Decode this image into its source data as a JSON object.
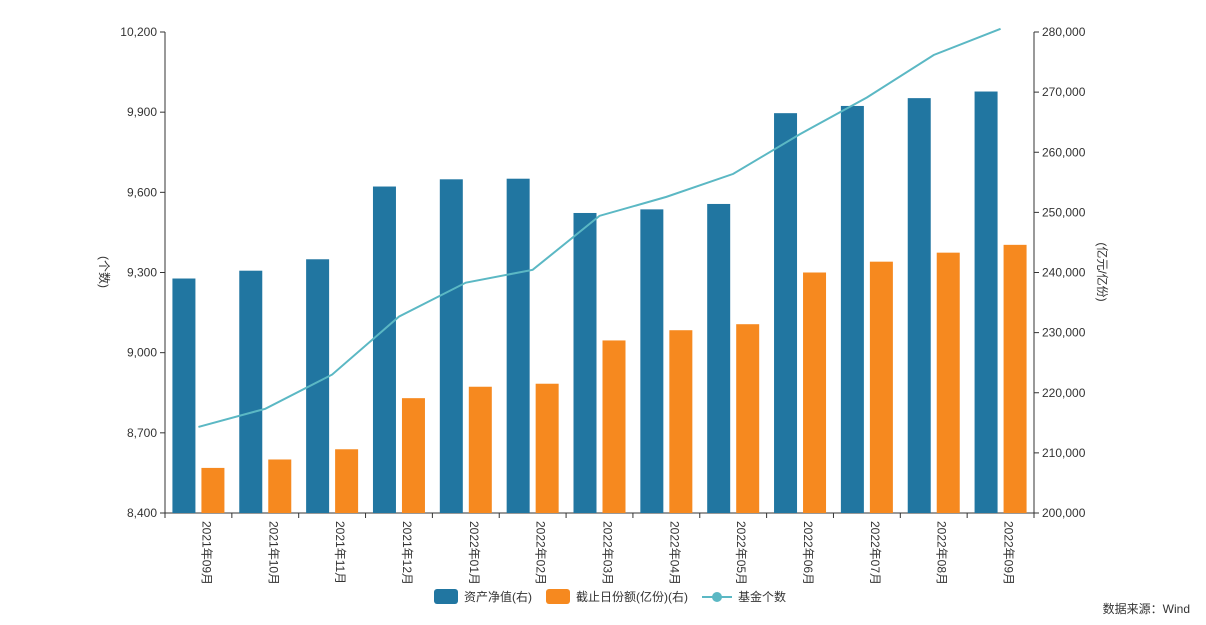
{
  "chart_data": {
    "type": "bar",
    "categories": [
      "2021年09月",
      "2021年10月",
      "2021年11月",
      "2021年12月",
      "2022年01月",
      "2022年02月",
      "2022年03月",
      "2022年04月",
      "2022年05月",
      "2022年06月",
      "2022年07月",
      "2022年08月",
      "2022年09月"
    ],
    "series": [
      {
        "name": "资产净值(右)",
        "type": "bar",
        "axis": "right",
        "color": "#2176a1",
        "values": [
          239000,
          240300,
          242200,
          254300,
          255500,
          255600,
          249900,
          250500,
          251400,
          266500,
          267700,
          269000,
          270100
        ]
      },
      {
        "name": "截止日份额(亿份)(右)",
        "type": "bar",
        "axis": "right",
        "color": "#f6891f",
        "values": [
          207500,
          208900,
          210600,
          219100,
          221000,
          221500,
          228700,
          230400,
          231400,
          240000,
          241800,
          243300,
          244600
        ]
      },
      {
        "name": "基金个数",
        "type": "line",
        "axis": "left",
        "color": "#5bb8c4",
        "values": [
          8722,
          8790,
          8918,
          9135,
          9262,
          9310,
          9512,
          9583,
          9669,
          9818,
          9955,
          10114,
          10212
        ]
      }
    ],
    "left_axis": {
      "label": "(个数)",
      "min": 8400,
      "max": 10200,
      "ticks": [
        "8,400",
        "8,700",
        "9,000",
        "9,300",
        "9,600",
        "9,900",
        "10,200"
      ]
    },
    "right_axis": {
      "label": "(亿元/亿份)",
      "min": 200000,
      "max": 280000,
      "ticks": [
        "200,000",
        "210,000",
        "220,000",
        "230,000",
        "240,000",
        "250,000",
        "260,000",
        "270,000",
        "280,000"
      ]
    },
    "legend_position": "bottom-center",
    "grid": false
  },
  "source_text": "数据来源：Wind"
}
